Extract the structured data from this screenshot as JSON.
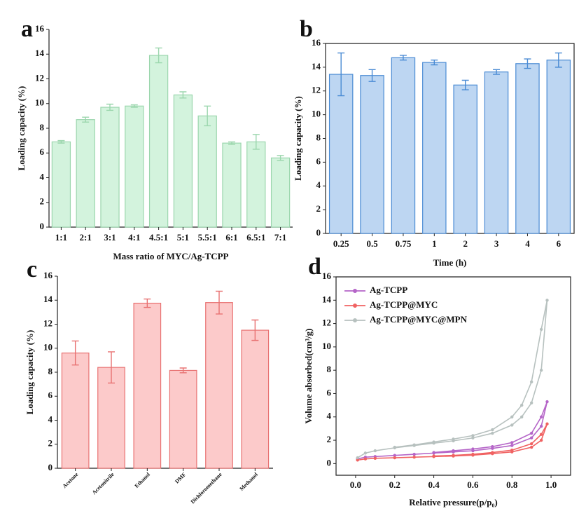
{
  "chart_data": [
    {
      "type": "bar",
      "panel_label": "a",
      "x_label": "Mass ratio of MYC/Ag-TCPP",
      "y_label": "Loading capacity (%)",
      "categories": [
        "1:1",
        "2:1",
        "3:1",
        "4:1",
        "4.5:1",
        "5:1",
        "5.5:1",
        "6:1",
        "6.5:1",
        "7:1"
      ],
      "values": [
        6.9,
        8.7,
        9.7,
        9.8,
        13.9,
        10.7,
        9.0,
        6.8,
        6.9,
        5.6
      ],
      "errors": [
        0.1,
        0.2,
        0.25,
        0.1,
        0.6,
        0.25,
        0.8,
        0.1,
        0.6,
        0.2
      ],
      "color": "#d3f3dd",
      "edge_color": "#9bd6ad",
      "ylim": [
        0,
        16
      ],
      "yticks": [
        0,
        2,
        4,
        6,
        8,
        10,
        12,
        14,
        16
      ]
    },
    {
      "type": "bar",
      "panel_label": "b",
      "x_label": "Time (h)",
      "y_label": "Loading capacity (%)",
      "categories": [
        "0.25",
        "0.5",
        "0.75",
        "1",
        "2",
        "3",
        "4",
        "6"
      ],
      "values": [
        13.4,
        13.3,
        14.8,
        14.4,
        12.5,
        13.6,
        14.3,
        14.6
      ],
      "errors": [
        1.8,
        0.5,
        0.2,
        0.2,
        0.4,
        0.2,
        0.4,
        0.6
      ],
      "color": "#bdd6f2",
      "edge_color": "#4a8bd4",
      "ylim": [
        0,
        16
      ],
      "yticks": [
        0,
        2,
        4,
        6,
        8,
        10,
        12,
        14,
        16
      ]
    },
    {
      "type": "bar",
      "panel_label": "c",
      "y_label": "Loading capacity (%)",
      "categories": [
        "Acetone",
        "Acetonitrile",
        "Ethanol",
        "DMF",
        "Dichloromethane",
        "Methanol"
      ],
      "values": [
        9.6,
        8.4,
        13.75,
        8.15,
        13.8,
        11.5
      ],
      "errors": [
        1.0,
        1.3,
        0.35,
        0.2,
        0.95,
        0.85
      ],
      "color": "#fccaca",
      "edge_color": "#e87272",
      "ylim": [
        0,
        16
      ],
      "yticks": [
        0,
        2,
        4,
        6,
        8,
        10,
        12,
        14,
        16
      ]
    },
    {
      "type": "line",
      "panel_label": "d",
      "x_label": "Relative pressure(p/p₀)",
      "y_label": "Volume absorbed(cm³/g)",
      "legend": "upper left",
      "series": [
        {
          "name": "Ag-TCPP",
          "color": "#b565c8",
          "x": [
            0.01,
            0.05,
            0.1,
            0.2,
            0.3,
            0.4,
            0.5,
            0.6,
            0.7,
            0.8,
            0.9,
            0.95,
            0.98,
            0.95,
            0.9,
            0.8,
            0.7,
            0.6,
            0.5,
            0.4
          ],
          "values": [
            0.4,
            0.55,
            0.6,
            0.7,
            0.8,
            0.9,
            1.0,
            1.1,
            1.3,
            1.55,
            2.2,
            3.2,
            5.3,
            4.0,
            2.6,
            1.8,
            1.45,
            1.25,
            1.1,
            0.95
          ]
        },
        {
          "name": "Ag-TCPP@MYC",
          "color": "#f06262",
          "x": [
            0.01,
            0.05,
            0.1,
            0.2,
            0.3,
            0.4,
            0.5,
            0.6,
            0.7,
            0.8,
            0.9,
            0.95,
            0.98,
            0.95,
            0.9,
            0.8,
            0.7,
            0.6,
            0.5,
            0.4
          ],
          "values": [
            0.3,
            0.4,
            0.45,
            0.5,
            0.55,
            0.6,
            0.65,
            0.72,
            0.85,
            1.0,
            1.4,
            2.0,
            3.4,
            2.5,
            1.7,
            1.15,
            0.95,
            0.8,
            0.7,
            0.65
          ]
        },
        {
          "name": "Ag-TCPP@MYC@MPN",
          "color": "#b7c1bf",
          "x": [
            0.01,
            0.05,
            0.1,
            0.2,
            0.3,
            0.4,
            0.5,
            0.6,
            0.7,
            0.8,
            0.85,
            0.9,
            0.95,
            0.98,
            0.95,
            0.9,
            0.85,
            0.8,
            0.7,
            0.6,
            0.5,
            0.4,
            0.3,
            0.2
          ],
          "values": [
            0.5,
            0.9,
            1.1,
            1.35,
            1.55,
            1.75,
            1.95,
            2.2,
            2.6,
            3.3,
            4.0,
            5.2,
            8.0,
            14.0,
            11.5,
            7.0,
            5.0,
            4.0,
            2.9,
            2.4,
            2.1,
            1.85,
            1.6,
            1.4
          ]
        }
      ],
      "xlim": [
        -0.1,
        1.1
      ],
      "xticks": [
        {
          "value": 0,
          "label": "0.0"
        },
        0.2,
        0.4,
        0.6,
        0.8,
        {
          "value": 1,
          "label": "1.0"
        }
      ],
      "ylim": [
        -1,
        16
      ],
      "yticks": [
        0,
        2,
        4,
        6,
        8,
        10,
        12,
        14,
        16
      ]
    }
  ]
}
